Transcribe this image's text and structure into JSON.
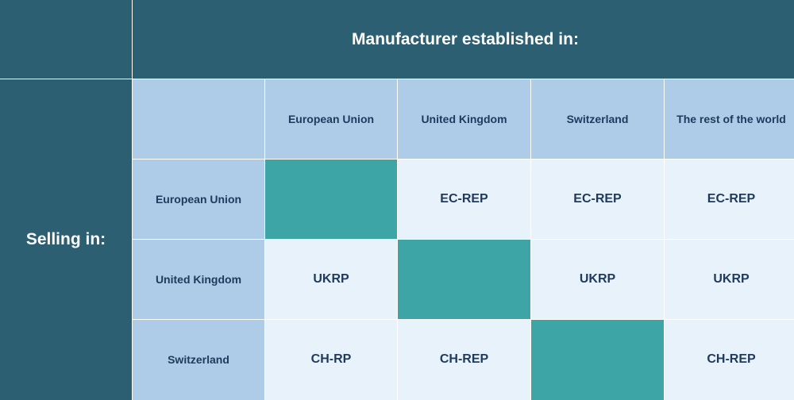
{
  "title": "Manufacturer established in:",
  "row_axis_label": "Selling in:",
  "columns": [
    "European Union",
    "United Kingdom",
    "Switzerland",
    "The rest of the world"
  ],
  "rows": [
    {
      "label": "European Union",
      "cells": [
        "",
        "EC-REP",
        "EC-REP",
        "EC-REP"
      ]
    },
    {
      "label": "United Kingdom",
      "cells": [
        "UKRP",
        "",
        "UKRP",
        "UKRP"
      ]
    },
    {
      "label": "Switzerland",
      "cells": [
        "CH-RP",
        "CH-REP",
        "",
        "CH-REP"
      ]
    }
  ],
  "colors": {
    "header_dark": "#2d5f72",
    "label_cell": "#aecbe8",
    "value_cell": "#e8f2fa",
    "same_region_cell": "#3ea5a6",
    "text_dark": "#1f3a5c"
  }
}
